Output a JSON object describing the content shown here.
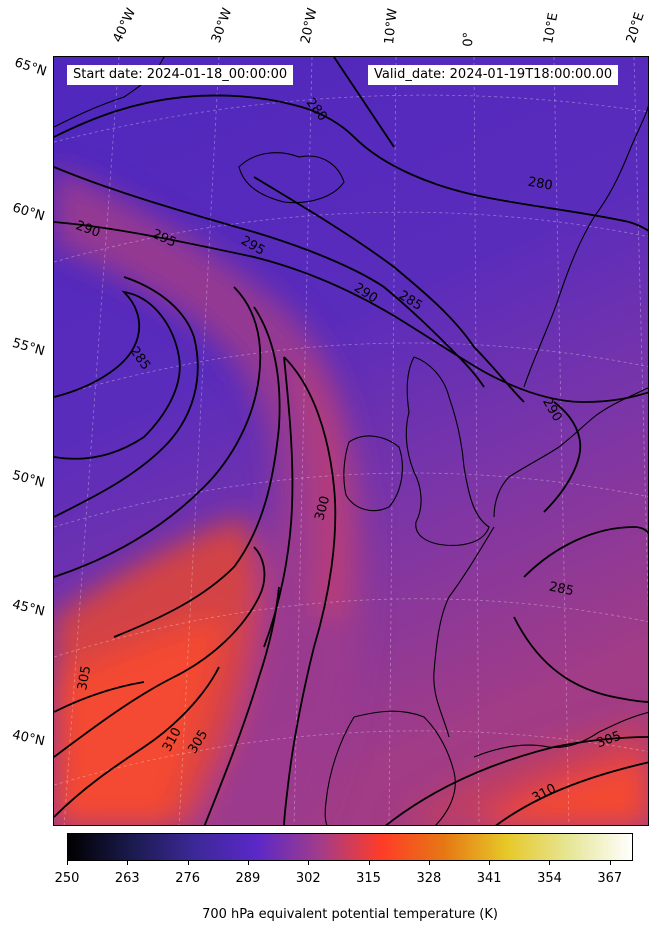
{
  "header": {
    "start_date": "Start date: 2024-01-18_00:00:00",
    "valid_date": "Valid_date: 2024-01-19T18:00:00.00"
  },
  "axes": {
    "longitude_labels": [
      "40°W",
      "30°W",
      "20°W",
      "10°W",
      "0°",
      "10°E",
      "20°E"
    ],
    "latitude_labels": [
      "65°N",
      "60°N",
      "55°N",
      "50°N",
      "45°N",
      "40°N"
    ]
  },
  "contour_labels": [
    "280",
    "280",
    "285",
    "285",
    "285",
    "290",
    "290",
    "290",
    "295",
    "295",
    "300",
    "305",
    "305",
    "305",
    "310",
    "310"
  ],
  "colorbar": {
    "ticks": [
      "250",
      "263",
      "276",
      "289",
      "302",
      "315",
      "328",
      "341",
      "354",
      "367"
    ],
    "label": "700 hPa equivalent potential temperature (K)",
    "range": [
      250,
      372
    ],
    "colormap": "CMRmap",
    "stops": [
      "#000000",
      "#1a1a4d",
      "#3c2896",
      "#5a28c8",
      "#a03c8c",
      "#ff3c28",
      "#e67814",
      "#e6c828",
      "#e6e696",
      "#ffffff"
    ]
  }
}
